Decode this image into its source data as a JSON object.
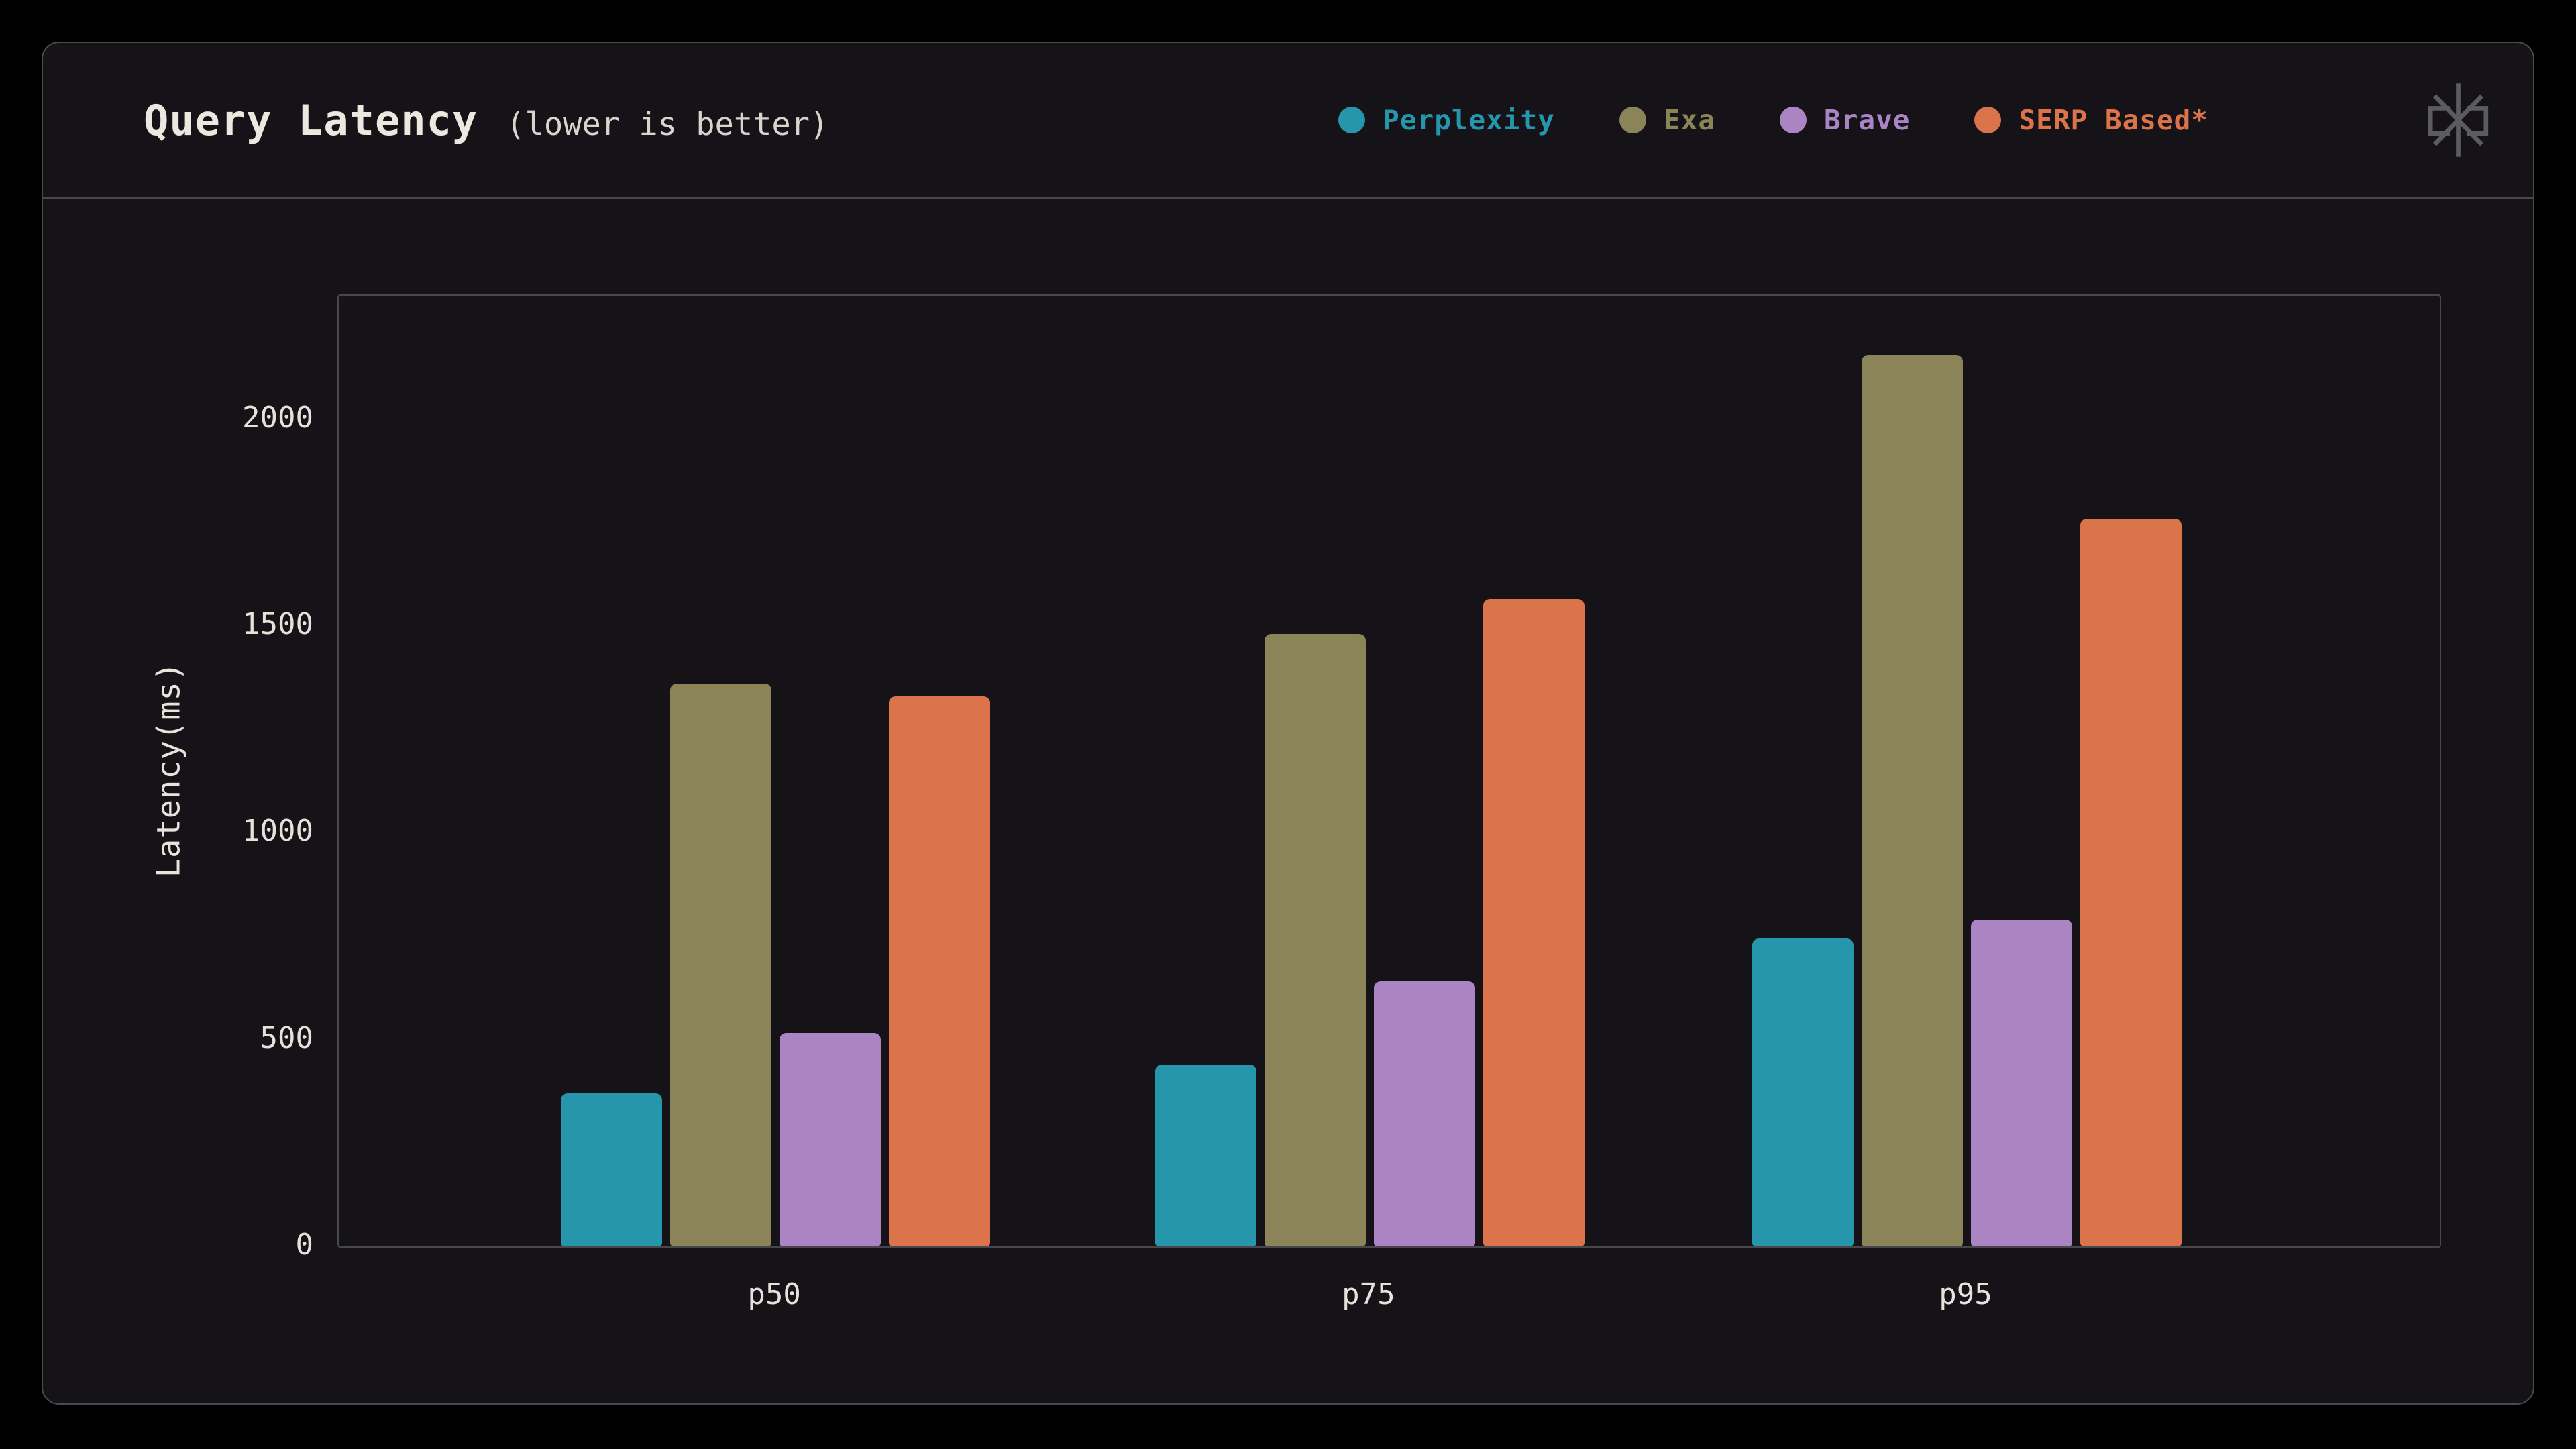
{
  "header": {
    "title": "Query Latency",
    "subtitle": "(lower is better)"
  },
  "logo": {
    "icon": "asterisk-mark"
  },
  "chart_data": {
    "type": "bar",
    "title": "Query Latency",
    "subtitle": "(lower is better)",
    "categories": [
      "p50",
      "p75",
      "p95"
    ],
    "series": [
      {
        "name": "Perplexity",
        "color": "#2596ab",
        "values": [
          370,
          440,
          745
        ]
      },
      {
        "name": "Exa",
        "color": "#8a8458",
        "values": [
          1360,
          1480,
          2155
        ]
      },
      {
        "name": "Brave",
        "color": "#ab84c4",
        "values": [
          515,
          640,
          790
        ]
      },
      {
        "name": "SERP Based*",
        "color": "#db734b",
        "values": [
          1330,
          1565,
          1760
        ]
      }
    ],
    "xlabel": "",
    "ylabel": "Latency(ms)",
    "ylim": [
      0,
      2298
    ],
    "yticks": [
      0,
      500,
      1000,
      1500,
      2000
    ],
    "grid": false,
    "legend_position": "top-right"
  },
  "colors": {
    "page_background": "#000000",
    "panel_background": "#151318",
    "panel_border": "#4a4a4f",
    "text": "#ece8e0",
    "tick_text": "#e6e2da",
    "logo_gray": "#5b5b60"
  }
}
